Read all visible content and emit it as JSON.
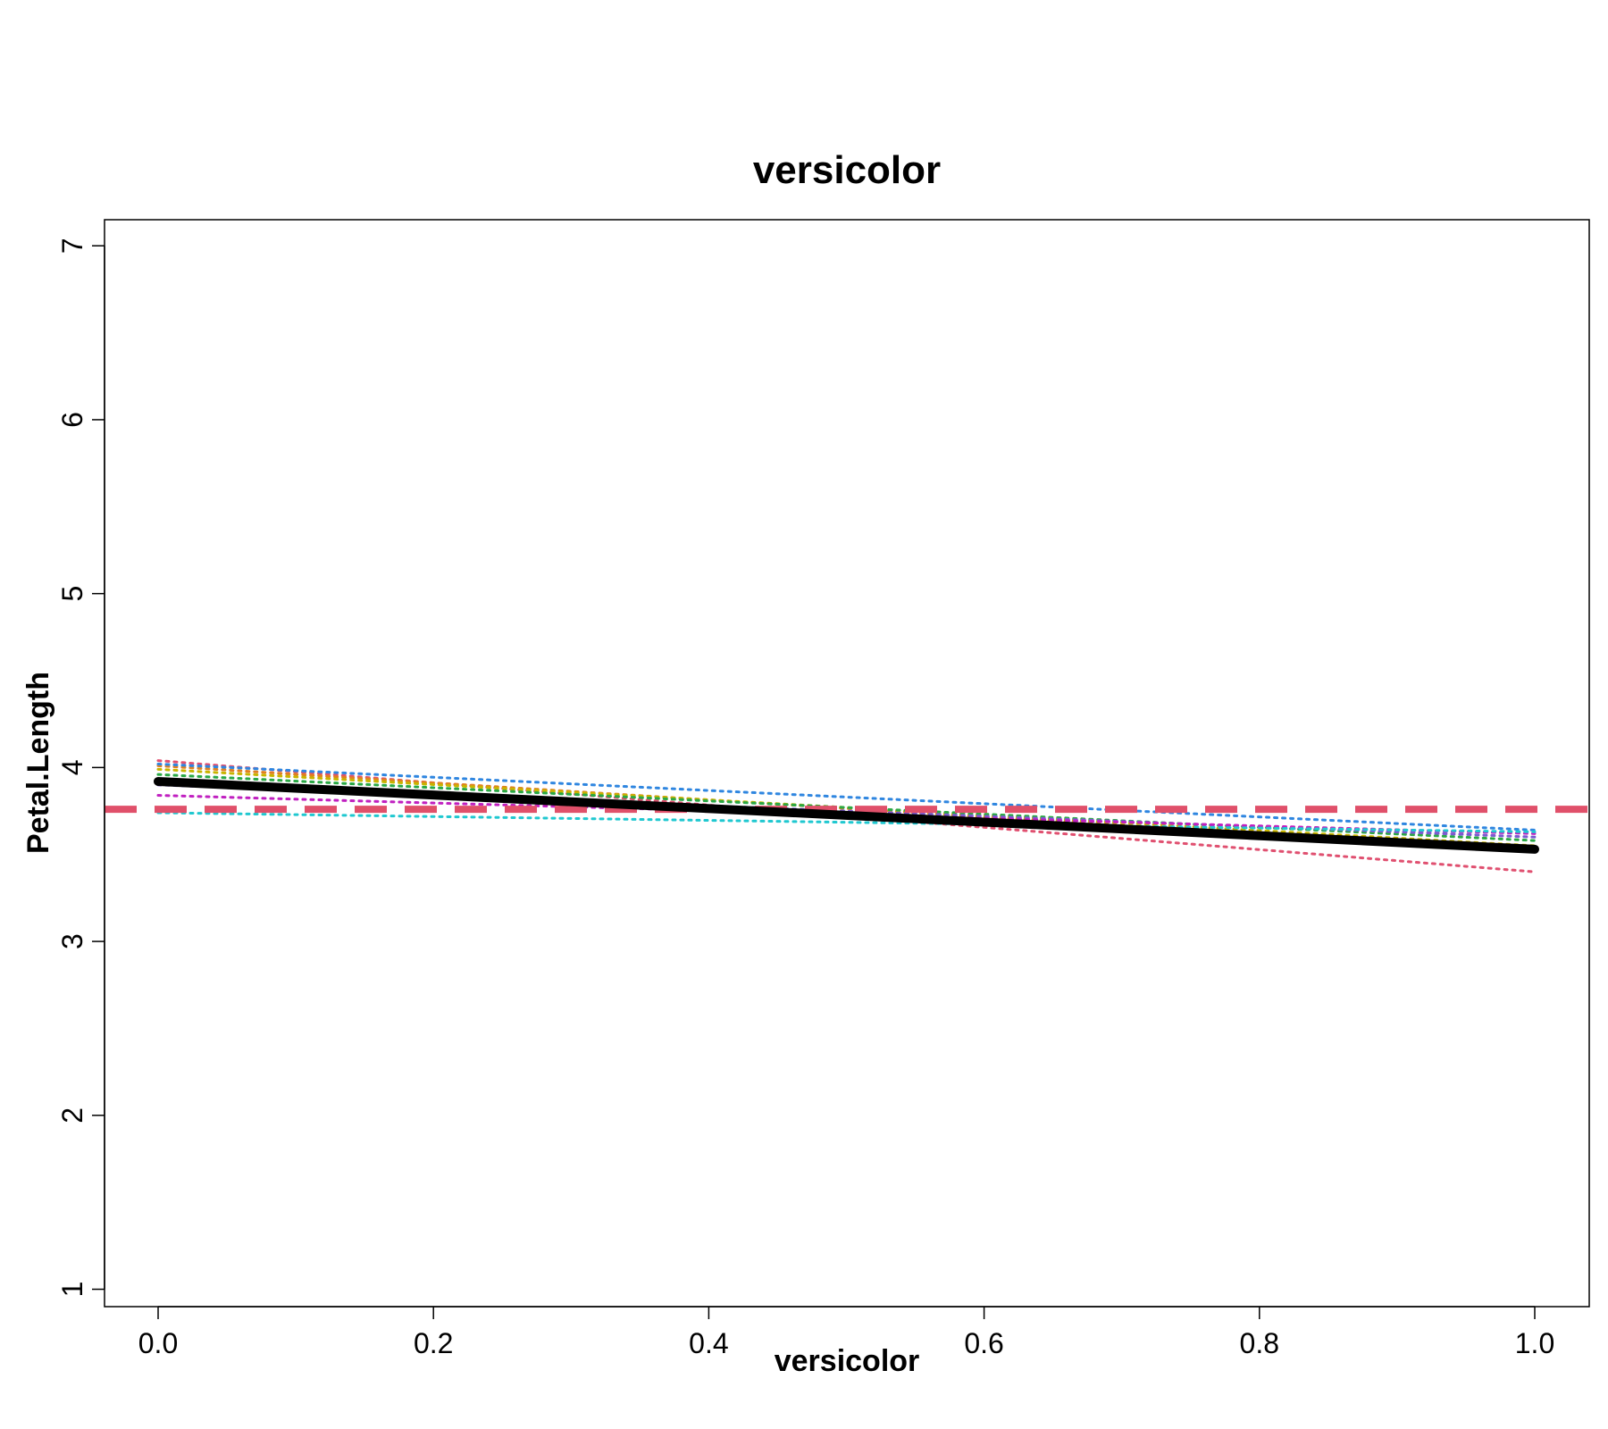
{
  "chart_data": {
    "type": "line",
    "title": "versicolor",
    "xlabel": "versicolor",
    "ylabel": "Petal.Length",
    "xlim": [
      0,
      1
    ],
    "ylim": [
      0.9,
      7.15
    ],
    "x_ticks": [
      "0.0",
      "0.2",
      "0.4",
      "0.6",
      "0.8",
      "1.0"
    ],
    "y_ticks": [
      "1",
      "2",
      "3",
      "4",
      "5",
      "6",
      "7"
    ],
    "grid": false,
    "legend": "none",
    "reference_line": {
      "y": 3.76,
      "color": "#e0506a",
      "style": "dashed"
    },
    "series": [
      {
        "x": [
          0,
          1
        ],
        "y": [
          3.92,
          3.53
        ],
        "color": "#000000",
        "style": "solid",
        "role": "average"
      },
      {
        "x": [
          0,
          1
        ],
        "y": [
          4.04,
          3.4
        ],
        "color": "#e05070",
        "style": "dotted"
      },
      {
        "x": [
          0,
          1
        ],
        "y": [
          4.01,
          3.52
        ],
        "color": "#e08020",
        "style": "dotted"
      },
      {
        "x": [
          0,
          1
        ],
        "y": [
          3.99,
          3.55
        ],
        "color": "#c8b400",
        "style": "dotted"
      },
      {
        "x": [
          0,
          1
        ],
        "y": [
          3.96,
          3.58
        ],
        "color": "#2aa845",
        "style": "dotted"
      },
      {
        "x": [
          0,
          1
        ],
        "y": [
          3.9,
          3.6
        ],
        "color": "#7a5ad0",
        "style": "dotted"
      },
      {
        "x": [
          0,
          1
        ],
        "y": [
          4.02,
          3.64
        ],
        "color": "#2f86e0",
        "style": "dotted"
      },
      {
        "x": [
          0,
          1
        ],
        "y": [
          3.84,
          3.62
        ],
        "color": "#c020c0",
        "style": "dotted"
      },
      {
        "x": [
          0,
          1
        ],
        "y": [
          3.74,
          3.63
        ],
        "color": "#20c8d0",
        "style": "dotted"
      }
    ]
  }
}
